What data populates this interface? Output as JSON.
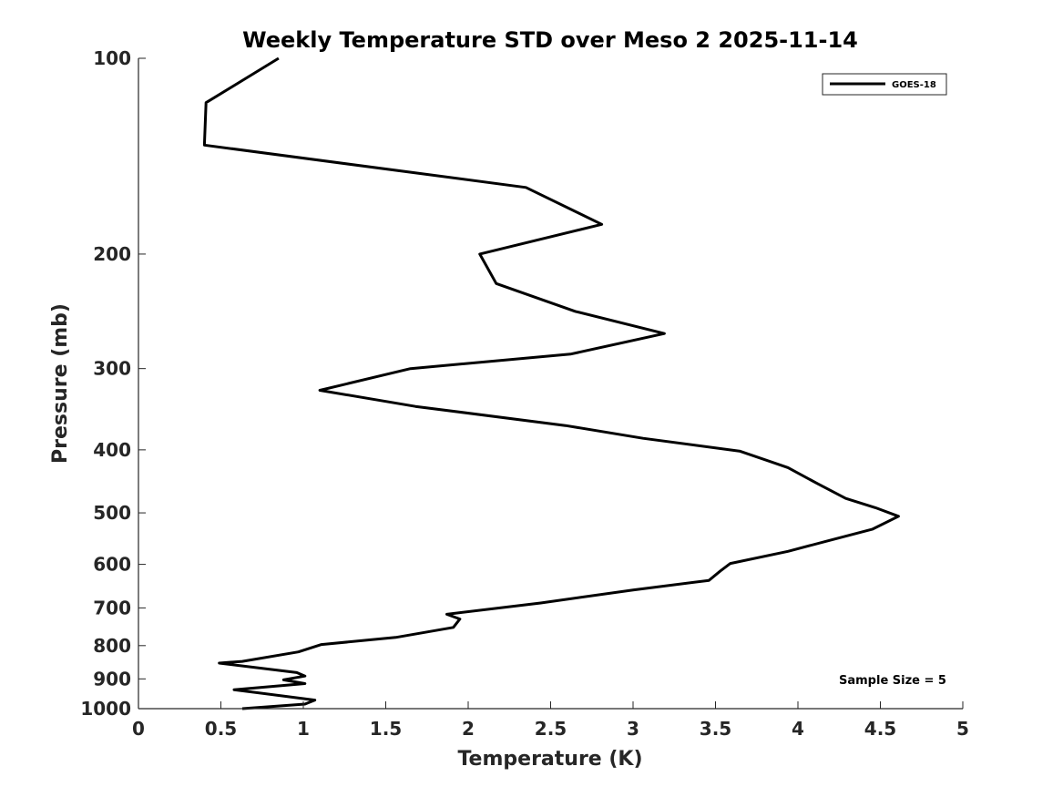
{
  "chart_data": {
    "type": "line",
    "title": "Weekly Temperature STD over Meso 2 2025-11-14",
    "xlabel": "Temperature (K)",
    "ylabel": "Pressure (mb)",
    "xlim": [
      0,
      5
    ],
    "ylim": [
      100,
      1000
    ],
    "yscale": "log",
    "y_reversed": true,
    "grid": false,
    "legend_location": "top-right",
    "x_ticks": [
      0,
      0.5,
      1,
      1.5,
      2,
      2.5,
      3,
      3.5,
      4,
      4.5,
      5
    ],
    "x_tick_labels": [
      "0",
      "0.5",
      "1",
      "1.5",
      "2",
      "2.5",
      "3",
      "3.5",
      "4",
      "4.5",
      "5"
    ],
    "y_ticks": [
      100,
      200,
      300,
      400,
      500,
      600,
      700,
      800,
      900,
      1000
    ],
    "y_tick_labels": [
      "100",
      "200",
      "300",
      "400",
      "500",
      "600",
      "700",
      "800",
      "900",
      "1000"
    ],
    "annotations": [
      "Sample Size = 5"
    ],
    "series": [
      {
        "name": "GOES-18",
        "color": "#000000",
        "x": [
          0.85,
          0.41,
          0.4,
          2.35,
          2.81,
          2.07,
          2.17,
          2.65,
          3.19,
          2.62,
          1.65,
          1.1,
          1.68,
          2.59,
          3.06,
          3.65,
          3.94,
          4.12,
          4.29,
          4.47,
          4.61,
          4.45,
          4.17,
          3.94,
          3.59,
          3.53,
          3.46,
          3.0,
          2.44,
          1.87,
          1.95,
          1.91,
          1.56,
          1.11,
          0.97,
          0.63,
          0.49,
          0.96,
          1.01,
          0.88,
          1.01,
          0.58,
          1.07,
          1.01,
          0.63
        ],
        "y": [
          100,
          117,
          136,
          158,
          180,
          200,
          222,
          245,
          265,
          285,
          300,
          324,
          343,
          367,
          384,
          402,
          426,
          451,
          475,
          491,
          506,
          530,
          553,
          573,
          598,
          614,
          635,
          657,
          688,
          716,
          728,
          750,
          777,
          797,
          818,
          846,
          851,
          880,
          891,
          903,
          915,
          935,
          970,
          984,
          1000
        ]
      }
    ]
  }
}
